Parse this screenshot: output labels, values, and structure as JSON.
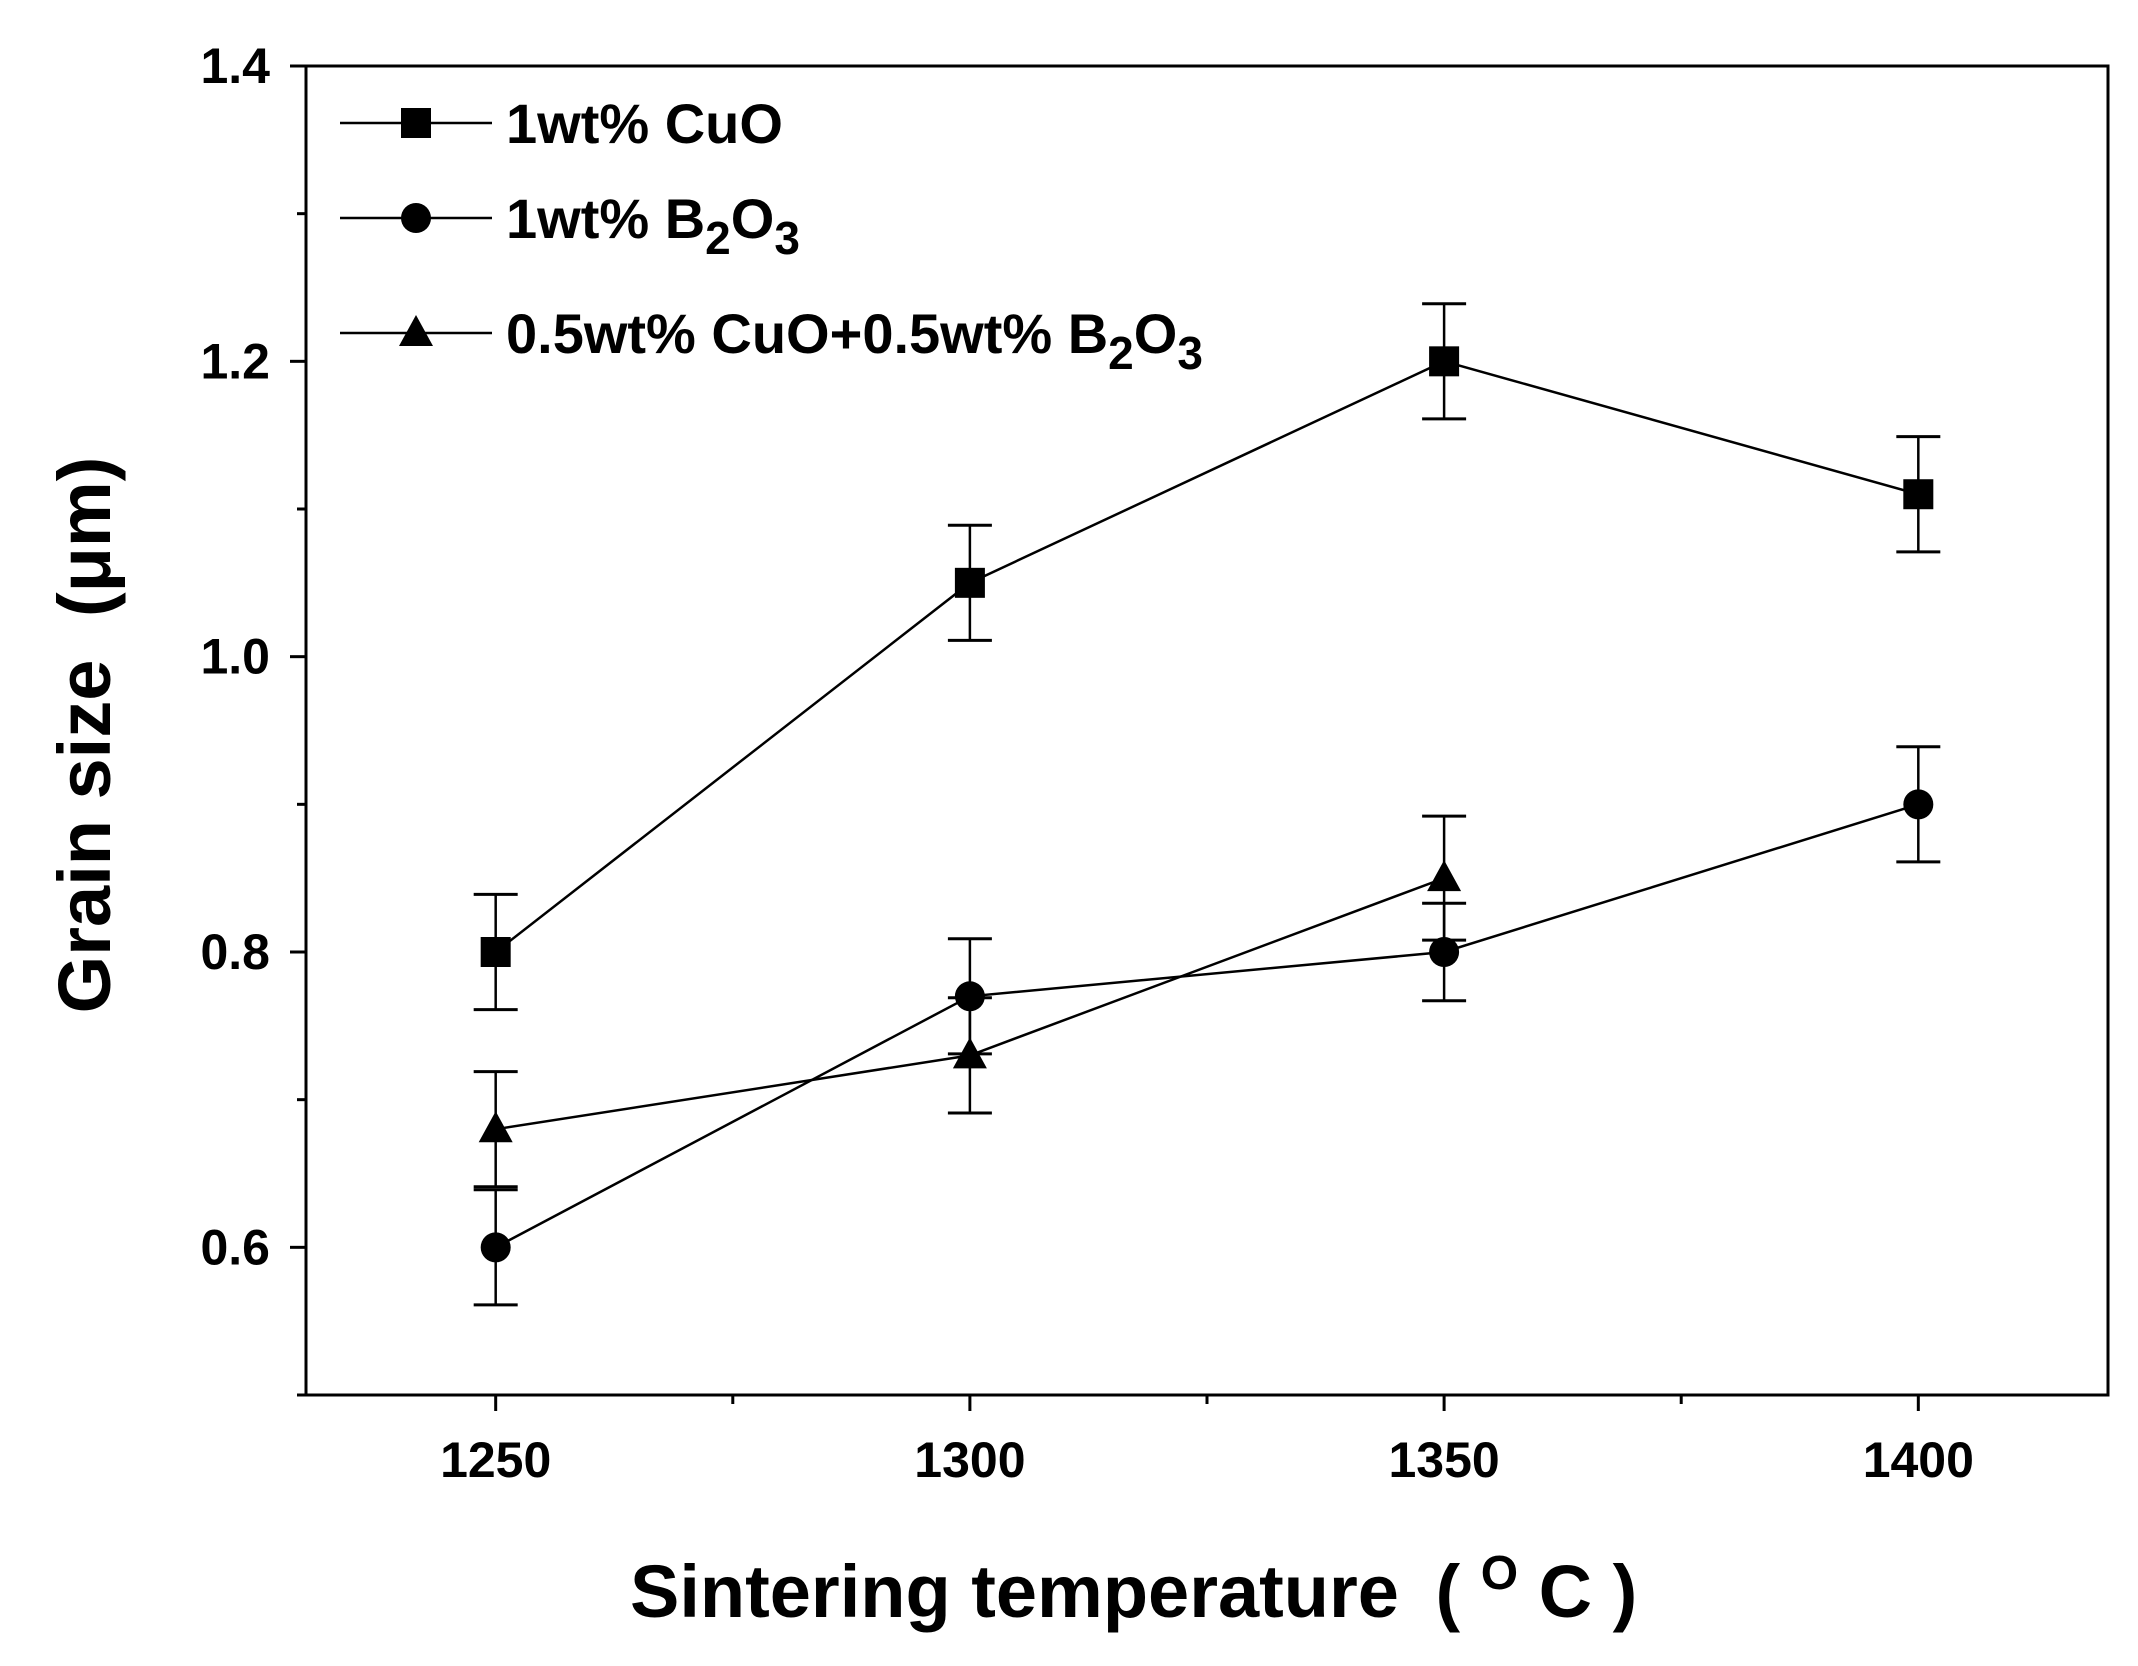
{
  "chart_data": {
    "type": "line",
    "title": "",
    "xlabel": "Sintering temperature",
    "xlabel_unit": "C",
    "xlabel_unit_sup": "O",
    "ylabel": "Grain size",
    "ylabel_unit": "(μm)",
    "xlim": [
      1230,
      1420
    ],
    "ylim": [
      0.5,
      1.4
    ],
    "x_ticks": [
      1250,
      1300,
      1350,
      1400
    ],
    "y_ticks": [
      0.6,
      0.8,
      1.0,
      1.2,
      1.4
    ],
    "y_tick_labels": [
      "0.6",
      "0.8",
      "1.0",
      "1.2",
      "1.4"
    ],
    "grid": false,
    "legend_position": "top-left",
    "series": [
      {
        "name": "1wt% CuO",
        "legend_parts": [
          [
            "1wt% CuO",
            false
          ]
        ],
        "marker": "square",
        "x": [
          1250,
          1300,
          1350,
          1400
        ],
        "y": [
          0.8,
          1.05,
          1.2,
          1.11
        ],
        "err": [
          0.039,
          0.039,
          0.039,
          0.039
        ]
      },
      {
        "name": "1wt% B2O3",
        "legend_parts": [
          [
            "1wt% B",
            false
          ],
          [
            "2",
            true
          ],
          [
            "O",
            false
          ],
          [
            "3",
            true
          ]
        ],
        "marker": "circle",
        "x": [
          1250,
          1300,
          1350,
          1400
        ],
        "y": [
          0.6,
          0.77,
          0.8,
          0.9
        ],
        "err": [
          0.039,
          0.039,
          0.033,
          0.039
        ]
      },
      {
        "name": "0.5wt% CuO+0.5wt% B2O3",
        "legend_parts": [
          [
            "0.5wt% CuO+0.5wt% B",
            false
          ],
          [
            "2",
            true
          ],
          [
            "O",
            false
          ],
          [
            "3",
            true
          ]
        ],
        "marker": "triangle",
        "x": [
          1250,
          1300,
          1350
        ],
        "y": [
          0.68,
          0.73,
          0.85
        ],
        "err": [
          0.039,
          0.039,
          0.042
        ]
      }
    ]
  }
}
